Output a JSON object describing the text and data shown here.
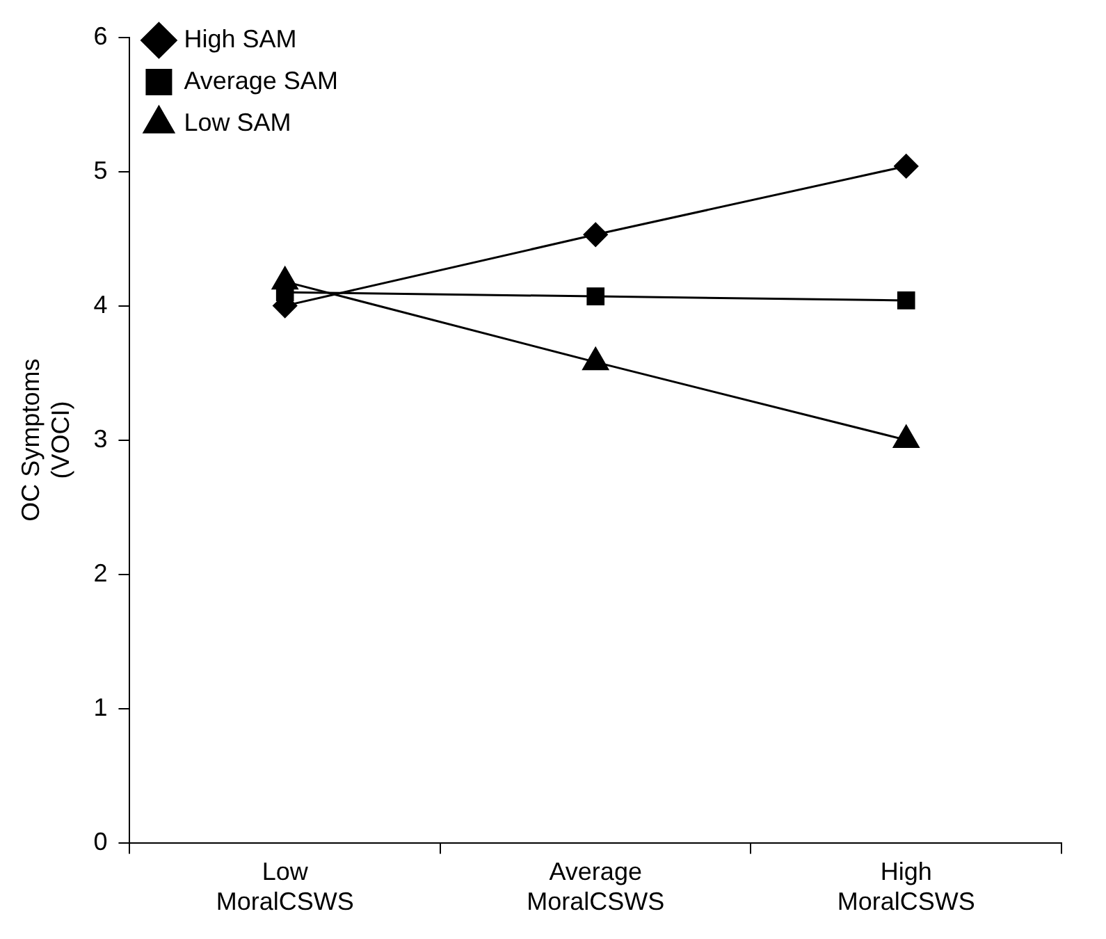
{
  "chart_data": {
    "type": "line",
    "ylabel": "OC Symptoms (VOCI)",
    "categories": [
      "Low MoralCSWS",
      "Average MoralCSWS",
      "High MoralCSWS"
    ],
    "series": [
      {
        "name": "High SAM",
        "color": "#000000",
        "marker": "diamond",
        "values": [
          4.0,
          4.53,
          5.04
        ]
      },
      {
        "name": "Average SAM",
        "color": "#000000",
        "marker": "square",
        "values": [
          4.1,
          4.07,
          4.04
        ]
      },
      {
        "name": "Low SAM",
        "color": "#000000",
        "marker": "triangle",
        "values": [
          4.18,
          3.58,
          3.0
        ]
      }
    ],
    "ylim": [
      0,
      6
    ],
    "yticks": [
      0,
      1,
      2,
      3,
      4,
      5,
      6
    ],
    "grid": false,
    "legend": "top left",
    "line_style": "solid"
  }
}
